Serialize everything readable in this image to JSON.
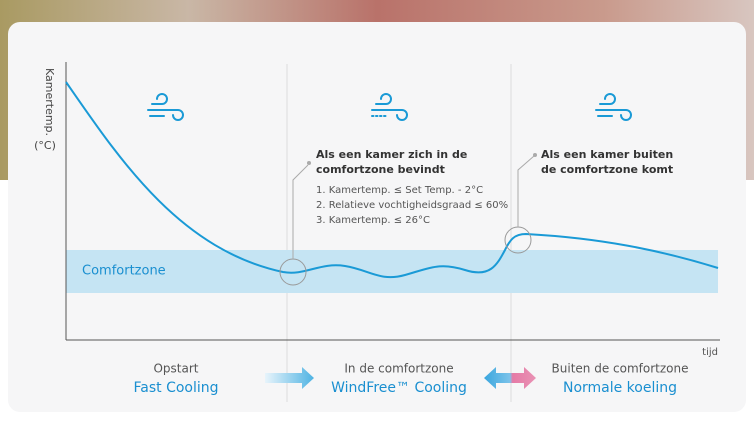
{
  "axis": {
    "y_label": "Kamertemp.",
    "y_unit": "(°C)",
    "x_label": "tijd"
  },
  "band": {
    "label": "Comfortzone"
  },
  "annotations": [
    {
      "lines": [
        "Als een kamer zich in de",
        "comfortzone bevindt"
      ],
      "items": [
        "1. Kamertemp. ≤ Set Temp. - 2°C",
        "2. Relatieve vochtigheidsgraad ≤ 60%",
        "3. Kamertemp. ≤ 26°C"
      ]
    },
    {
      "lines": [
        "Als een kamer buiten",
        "de comfortzone komt"
      ]
    }
  ],
  "phases": [
    {
      "label": "Opstart",
      "mode": "Fast Cooling"
    },
    {
      "label": "In de comfortzone",
      "mode": "WindFree™ Cooling"
    },
    {
      "label": "Buiten de comfortzone",
      "mode": "Normale koeling"
    }
  ]
}
